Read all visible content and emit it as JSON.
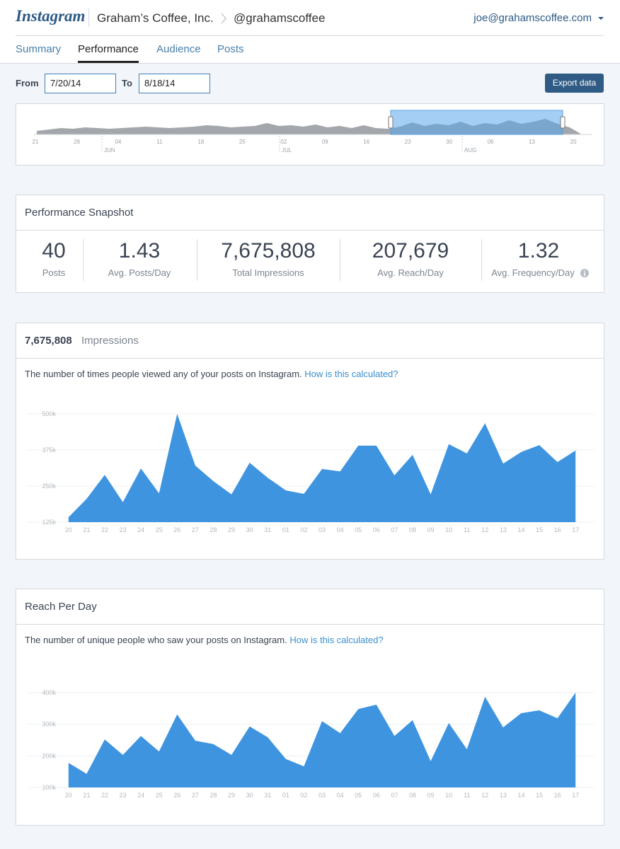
{
  "header": {
    "logo": "Instagram",
    "account": "Graham’s Coffee, Inc.",
    "handle": "@grahamscoffee",
    "user": "joe@grahamscoffee.com"
  },
  "tabs": [
    "Summary",
    "Performance",
    "Audience",
    "Posts"
  ],
  "active_tab": 1,
  "date_range": {
    "from_label": "From",
    "from": "7/20/14",
    "to_label": "To",
    "to": "8/18/14",
    "export": "Export data"
  },
  "overview": {
    "ticks": [
      "21",
      "28",
      "04",
      "11",
      "18",
      "25",
      "02",
      "09",
      "16",
      "23",
      "30",
      "06",
      "13",
      "20"
    ],
    "months": [
      "JUN",
      "JUL",
      "AUG"
    ],
    "values": [
      5,
      7,
      9,
      8,
      10,
      9,
      8,
      9,
      10,
      11,
      10,
      9,
      10,
      11,
      13,
      12,
      10,
      11,
      12,
      16,
      12,
      13,
      11,
      14,
      10,
      12,
      9,
      13,
      9,
      8,
      11,
      17,
      12,
      15,
      13,
      18,
      12,
      16,
      14,
      20,
      15,
      18,
      22,
      15,
      10,
      0
    ],
    "ylim": [
      0,
      40
    ]
  },
  "snapshot": {
    "title": "Performance Snapshot",
    "stats": [
      {
        "value": "40",
        "label": "Posts"
      },
      {
        "value": "1.43",
        "label": "Avg. Posts/Day"
      },
      {
        "value": "7,675,808",
        "label": "Total Impressions"
      },
      {
        "value": "207,679",
        "label": "Avg. Reach/Day"
      },
      {
        "value": "1.32",
        "label": "Avg. Frequency/Day"
      }
    ]
  },
  "impressions": {
    "total": "7,675,808",
    "title": "Impressions",
    "description": "The number of times people viewed any of your posts on Instagram.",
    "link": "How is this calculated?",
    "chart_data": {
      "type": "area",
      "color": "#3f94e0",
      "categories": [
        "20",
        "21",
        "22",
        "23",
        "24",
        "25",
        "26",
        "27",
        "28",
        "29",
        "30",
        "31",
        "01",
        "02",
        "03",
        "04",
        "05",
        "06",
        "07",
        "08",
        "09",
        "10",
        "11",
        "12",
        "13",
        "14",
        "15",
        "16",
        "17"
      ],
      "values": [
        142000,
        206000,
        289000,
        194000,
        311000,
        225000,
        500000,
        321000,
        267000,
        221000,
        331000,
        279000,
        235000,
        223000,
        309000,
        301000,
        390000,
        390000,
        287000,
        358000,
        221000,
        395000,
        363000,
        468000,
        328000,
        368000,
        392000,
        333000,
        373000
      ],
      "ylim": [
        125000,
        500000
      ],
      "yticks": [
        {
          "value": 125000,
          "label": "125k"
        },
        {
          "value": 250000,
          "label": "250k"
        },
        {
          "value": 375000,
          "label": "375k"
        },
        {
          "value": 500000,
          "label": "500k"
        }
      ],
      "grid": true
    }
  },
  "reach": {
    "title": "Reach Per Day",
    "description": "The number of unique people who saw your posts on Instagram.",
    "link": "How is this calculated?",
    "chart_data": {
      "type": "area",
      "color": "#3f94e0",
      "categories": [
        "20",
        "21",
        "22",
        "23",
        "24",
        "25",
        "26",
        "27",
        "28",
        "29",
        "30",
        "31",
        "01",
        "02",
        "03",
        "04",
        "05",
        "06",
        "07",
        "08",
        "09",
        "10",
        "11",
        "12",
        "13",
        "14",
        "15",
        "16",
        "17"
      ],
      "values": [
        178000,
        143000,
        252000,
        203000,
        263000,
        214000,
        331000,
        248000,
        237000,
        203000,
        293000,
        259000,
        190000,
        167000,
        310000,
        272000,
        348000,
        362000,
        263000,
        313000,
        183000,
        304000,
        221000,
        387000,
        290000,
        335000,
        344000,
        319000,
        400000
      ],
      "ylim": [
        100000,
        400000
      ],
      "yticks": [
        {
          "value": 100000,
          "label": "100k"
        },
        {
          "value": 200000,
          "label": "200k"
        },
        {
          "value": 300000,
          "label": "300k"
        },
        {
          "value": 400000,
          "label": "400k"
        }
      ],
      "grid": true
    }
  }
}
